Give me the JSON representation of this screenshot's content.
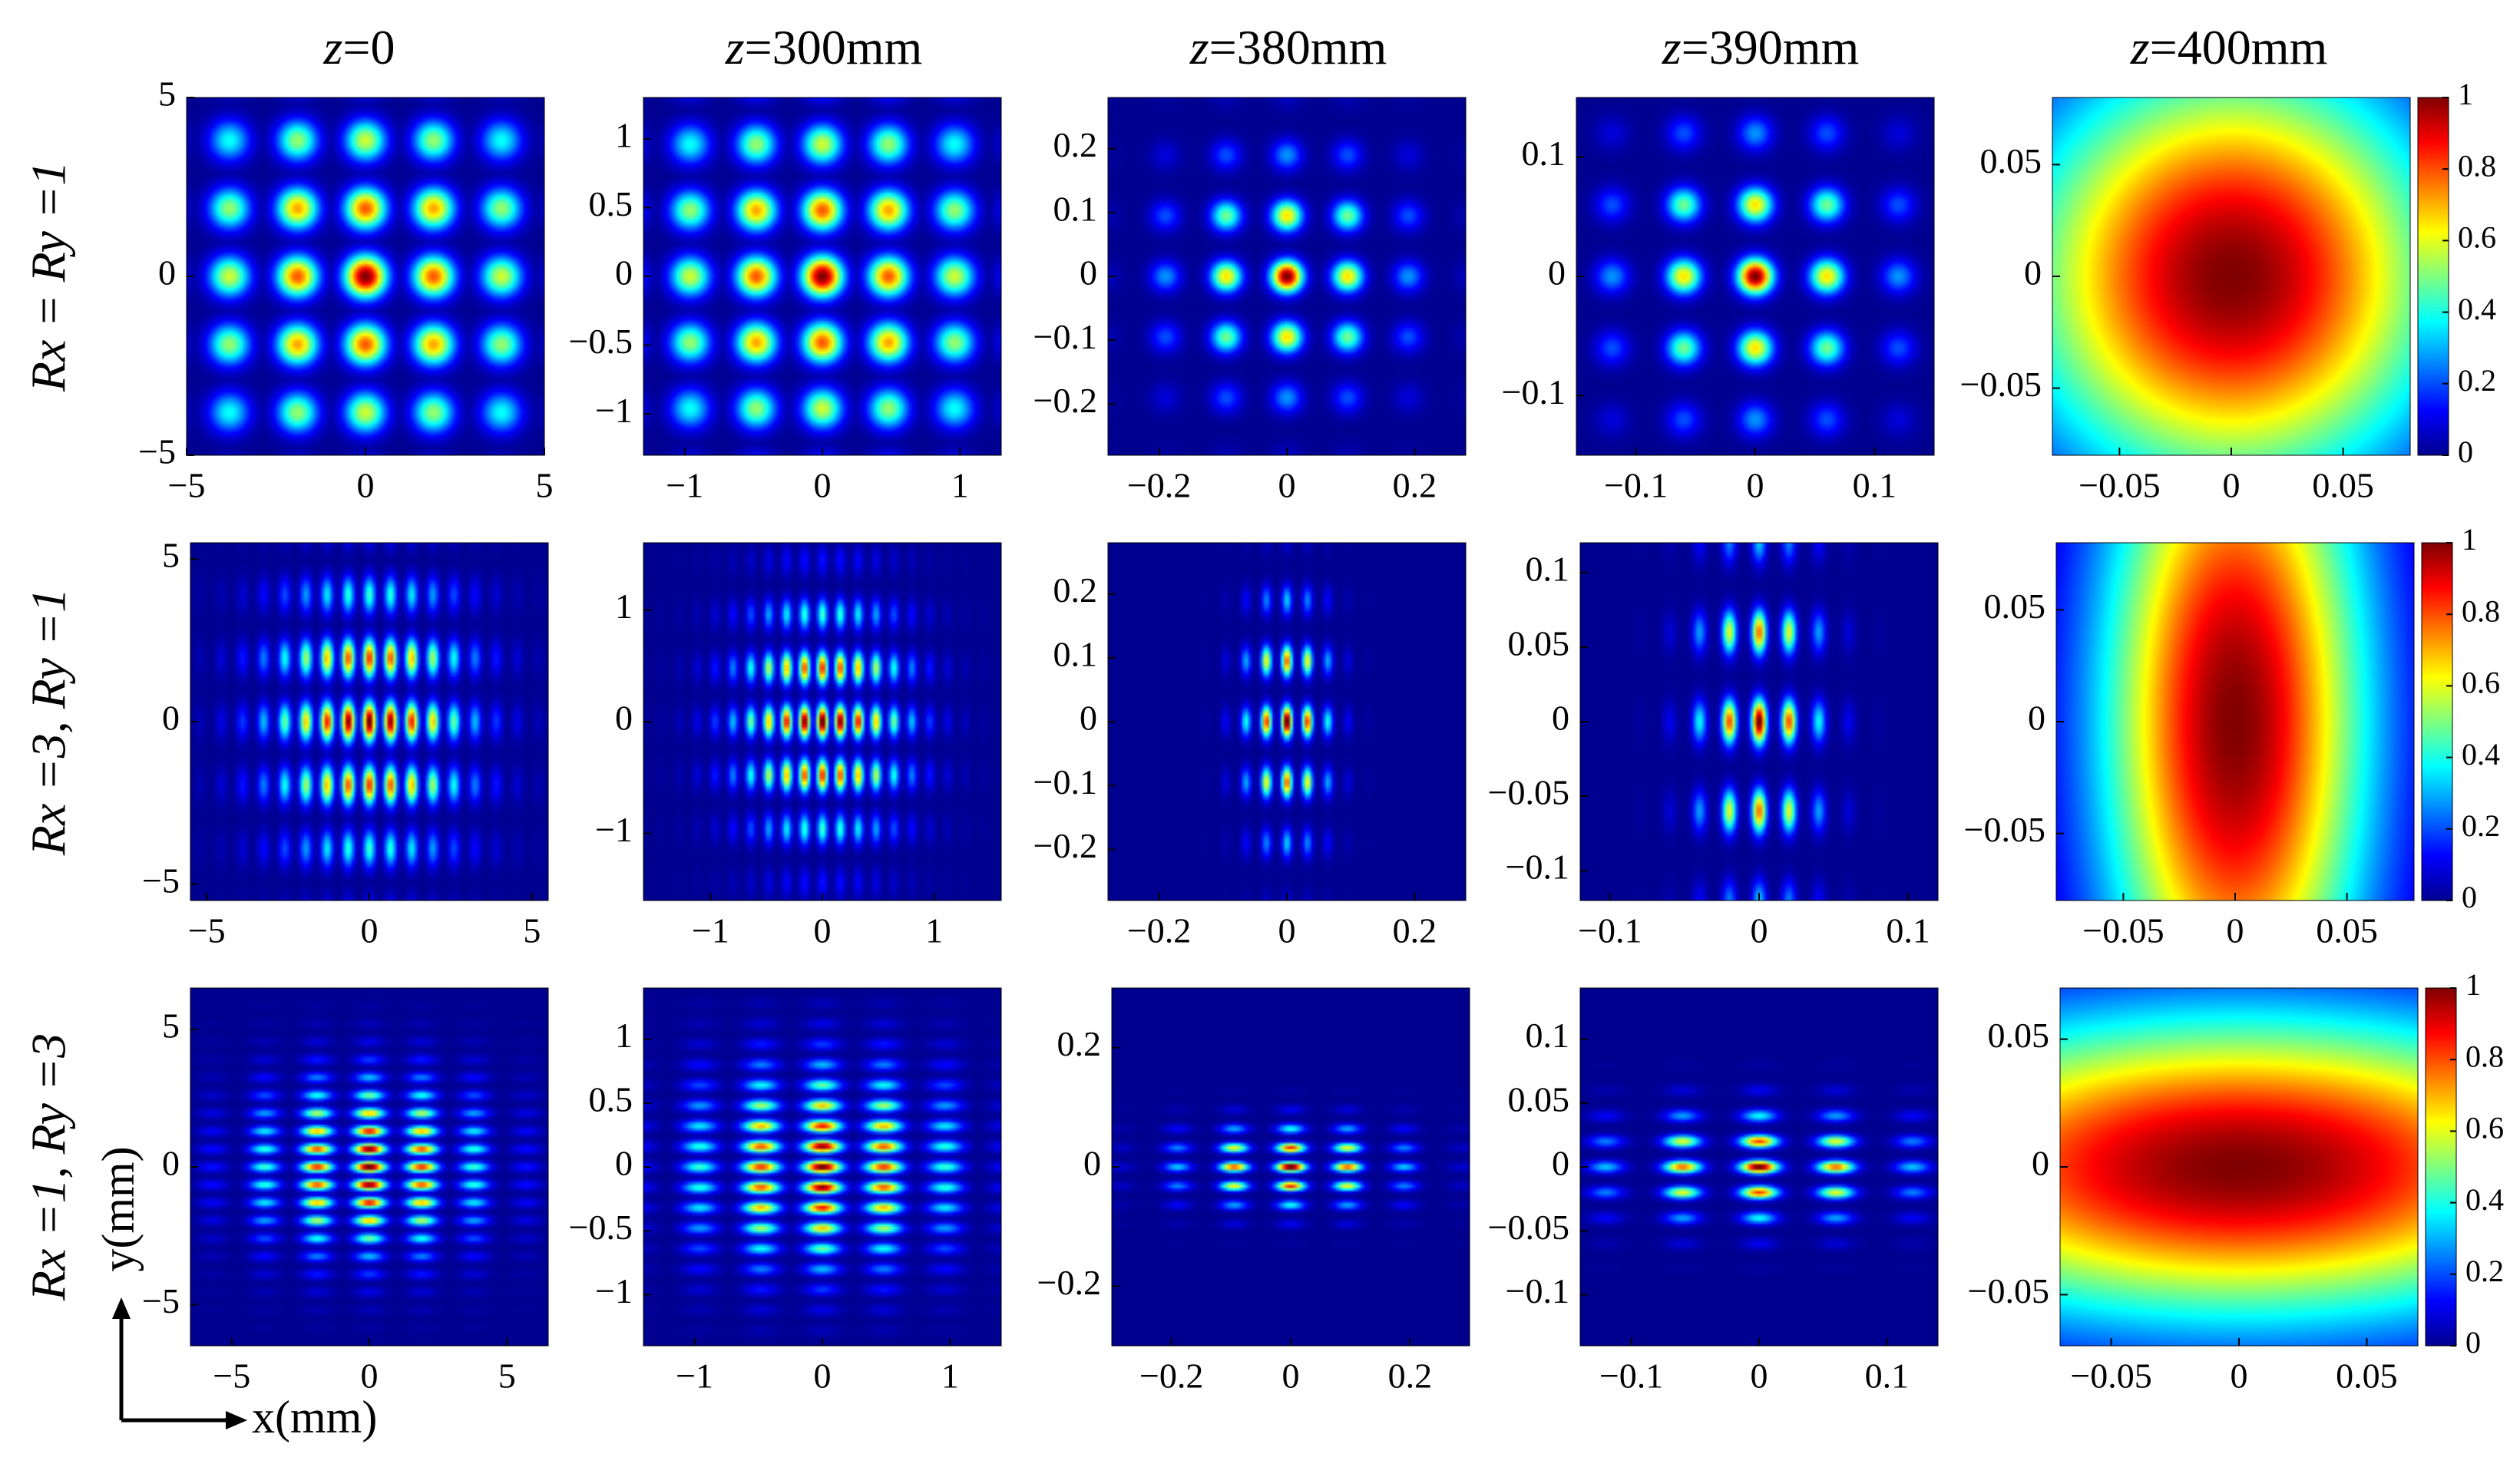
{
  "chart_data": {
    "type": "heatmap",
    "title": "",
    "column_titles": [
      {
        "var": "z",
        "text": "=0"
      },
      {
        "var": "z",
        "text": "=300mm"
      },
      {
        "var": "z",
        "text": "=380mm"
      },
      {
        "var": "z",
        "text": "=390mm"
      },
      {
        "var": "z",
        "text": "=400mm"
      }
    ],
    "row_labels": [
      "Rx = Ry =1",
      "Rx =3, Ry =1",
      "Rx =1, Ry =3"
    ],
    "xlabel": "x(mm)",
    "ylabel": "y(mm)",
    "colormap": "jet",
    "colorbar": {
      "range": [
        0,
        1
      ],
      "ticks": [
        "0",
        "0.2",
        "0.4",
        "0.6",
        "0.8",
        "1"
      ]
    },
    "colors": [
      "#00008f",
      "#0000ff",
      "#00ffff",
      "#ffff00",
      "#ff0000",
      "#800000"
    ],
    "rows": [
      {
        "Rx": 1,
        "Ry": 1,
        "panels": [
          {
            "xlim": [
              -5,
              5
            ],
            "ylim": [
              -5,
              5
            ],
            "xticks": [
              "-5",
              "0",
              "5"
            ],
            "yticks": [
              "5",
              "0",
              "-5"
            ],
            "spacing_x": 1.9,
            "spacing_y": 1.9
          },
          {
            "xlim": [
              -1.3,
              1.3
            ],
            "ylim": [
              -1.3,
              1.3
            ],
            "xticks": [
              "-1",
              "0",
              "1"
            ],
            "yticks": [
              "1",
              "0.5",
              "0",
              "-0.5",
              "-1"
            ],
            "spacing_x": 0.48,
            "spacing_y": 0.48
          },
          {
            "xlim": [
              -0.28,
              0.28
            ],
            "ylim": [
              -0.28,
              0.28
            ],
            "xticks": [
              "-0.2",
              "0",
              "0.2"
            ],
            "yticks": [
              "0.2",
              "0.1",
              "0",
              "-0.1",
              "-0.2"
            ],
            "spacing_x": 0.095,
            "spacing_y": 0.095
          },
          {
            "xlim": [
              -0.15,
              0.15
            ],
            "ylim": [
              -0.15,
              0.15
            ],
            "xticks": [
              "-0.1",
              "0",
              "0.1"
            ],
            "yticks": [
              "0.1",
              "0",
              "-0.1"
            ],
            "spacing_x": 0.06,
            "spacing_y": 0.06
          },
          {
            "xlim": [
              -0.08,
              0.08
            ],
            "ylim": [
              -0.08,
              0.08
            ],
            "xticks": [
              "-0.05",
              "0",
              "0.05"
            ],
            "yticks": [
              "0.05",
              "0",
              "-0.05"
            ],
            "spacing_x": 0.1,
            "spacing_y": 0.1
          }
        ]
      },
      {
        "Rx": 3,
        "Ry": 1,
        "panels": [
          {
            "xlim": [
              -5.5,
              5.5
            ],
            "ylim": [
              -5.5,
              5.5
            ],
            "xticks": [
              "-5",
              "0",
              "5"
            ],
            "yticks": [
              "5",
              "0",
              "-5"
            ],
            "spacing_x": 0.65,
            "spacing_y": 1.95
          },
          {
            "xlim": [
              -1.6,
              1.6
            ],
            "ylim": [
              -1.6,
              1.6
            ],
            "xticks": [
              "-1",
              "0",
              "1"
            ],
            "yticks": [
              "1",
              "0",
              "-1"
            ],
            "spacing_x": 0.16,
            "spacing_y": 0.48
          },
          {
            "xlim": [
              -0.28,
              0.28
            ],
            "ylim": [
              -0.28,
              0.28
            ],
            "xticks": [
              "-0.2",
              "0",
              "0.2"
            ],
            "yticks": [
              "0.2",
              "0.1",
              "0",
              "-0.1",
              "-0.2"
            ],
            "spacing_x": 0.032,
            "spacing_y": 0.095
          },
          {
            "xlim": [
              -0.12,
              0.12
            ],
            "ylim": [
              -0.12,
              0.12
            ],
            "xticks": [
              "-0.1",
              "0",
              "0.1"
            ],
            "yticks": [
              "0.1",
              "0.05",
              "0",
              "-0.05",
              "-0.1"
            ],
            "spacing_x": 0.02,
            "spacing_y": 0.06
          },
          {
            "xlim": [
              -0.08,
              0.08
            ],
            "ylim": [
              -0.08,
              0.08
            ],
            "xticks": [
              "-0.05",
              "0",
              "0.05"
            ],
            "yticks": [
              "0.05",
              "0",
              "-0.05"
            ],
            "spacing_x": 0.1,
            "spacing_y": 0.1
          }
        ]
      },
      {
        "Rx": 1,
        "Ry": 3,
        "panels": [
          {
            "xlim": [
              -6.5,
              6.5
            ],
            "ylim": [
              -6.5,
              6.5
            ],
            "xticks": [
              "-5",
              "0",
              "5"
            ],
            "yticks": [
              "5",
              "0",
              "-5"
            ],
            "spacing_x": 1.9,
            "spacing_y": 0.65
          },
          {
            "xlim": [
              -1.4,
              1.4
            ],
            "ylim": [
              -1.4,
              1.4
            ],
            "xticks": [
              "-1",
              "0",
              "1"
            ],
            "yticks": [
              "1",
              "0.5",
              "0",
              "-0.5",
              "-1"
            ],
            "spacing_x": 0.48,
            "spacing_y": 0.16
          },
          {
            "xlim": [
              -0.3,
              0.3
            ],
            "ylim": [
              -0.3,
              0.3
            ],
            "xticks": [
              "-0.2",
              "0",
              "0.2"
            ],
            "yticks": [
              "0.2",
              "0",
              "-0.2"
            ],
            "spacing_x": 0.095,
            "spacing_y": 0.032
          },
          {
            "xlim": [
              -0.14,
              0.14
            ],
            "ylim": [
              -0.14,
              0.14
            ],
            "xticks": [
              "-0.1",
              "0",
              "0.1"
            ],
            "yticks": [
              "0.1",
              "0.05",
              "0",
              "-0.05",
              "-0.1"
            ],
            "spacing_x": 0.06,
            "spacing_y": 0.02
          },
          {
            "xlim": [
              -0.07,
              0.07
            ],
            "ylim": [
              -0.07,
              0.07
            ],
            "xticks": [
              "-0.05",
              "0",
              "0.05"
            ],
            "yticks": [
              "0.05",
              "0",
              "-0.05"
            ],
            "spacing_x": 0.1,
            "spacing_y": 0.1
          }
        ]
      }
    ]
  }
}
